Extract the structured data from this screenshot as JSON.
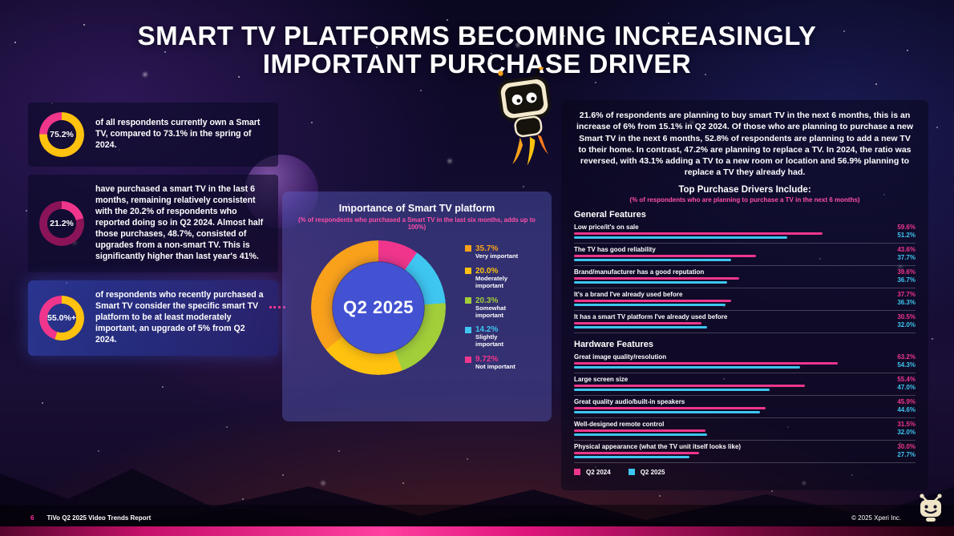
{
  "header": {
    "title_line1": "SMART TV PLATFORMS BECOMING INCREASINGLY",
    "title_line2": "IMPORTANT PURCHASE DRIVER"
  },
  "left_stats": [
    {
      "value": "75.2%",
      "ring_percent": 75.2,
      "ring_color": "#ffc20e",
      "ring_rest_color": "#f0368c",
      "text": "of all respondents currently own a Smart TV, compared to 73.1% in the spring of 2024."
    },
    {
      "value": "21.2%",
      "ring_percent": 21.2,
      "ring_color": "#f0368c",
      "ring_rest_color": "#8a1457",
      "text": "have purchased a smart TV in the last 6 months, remaining relatively consistent with the 20.2% of respondents who reported doing so in Q2 2024. Almost half those purchases, 48.7%, consisted of upgrades from a non-smart TV. This is significantly higher than last year's 41%."
    },
    {
      "value": "55.0%+",
      "ring_percent": 55.0,
      "ring_color": "#ffc20e",
      "ring_rest_color": "#f0368c",
      "text": "of respondents who recently purchased a Smart TV consider the specific smart TV platform to be at least moderately important, an upgrade of 5% from Q2 2024."
    }
  ],
  "right_panel": {
    "intro": "21.6% of respondents are planning to buy smart TV in the next 6 months, this is an increase of 6% from 15.1% in Q2 2024. Of those who are planning to purchase a new Smart TV in the next 6 months, 52.8% of respondents are planning to add a new TV to their home. In contrast, 47.2% are planning to replace a TV. In 2024, the ratio was reversed, with 43.1% adding a TV to a new room or location and 56.9% planning to replace a TV they already had.",
    "drivers_title": "Top Purchase Drivers Include:",
    "drivers_subtitle": "(% of respondents who are planning to purchase a TV in the next 6 months)"
  },
  "chart_data": [
    {
      "type": "pie",
      "title": "Importance of Smart TV platform",
      "subtitle": "(% of respondents who purchased a Smart TV in the last six months, adds up to 100%)",
      "center_label": "Q2 2025",
      "legend_position": "right",
      "segments": [
        {
          "label": "Very important",
          "value": 35.7,
          "display": "35.7%",
          "color": "#f9a11b"
        },
        {
          "label": "Moderately important",
          "value": 20.0,
          "display": "20.0%",
          "color": "#ffc20e"
        },
        {
          "label": "Somewhat important",
          "value": 20.3,
          "display": "20.3%",
          "color": "#a2ce39"
        },
        {
          "label": "Slightly important",
          "value": 14.2,
          "display": "14.2%",
          "color": "#3ec6f0"
        },
        {
          "label": "Not important",
          "value": 9.72,
          "display": "9.72%",
          "color": "#f0368c"
        }
      ]
    },
    {
      "type": "bar",
      "orientation": "horizontal",
      "axis_max": 70,
      "grid": false,
      "legend_position": "bottom-left",
      "series": [
        {
          "name": "Q2 2024",
          "color": "#f0368c"
        },
        {
          "name": "Q2 2025",
          "color": "#3ec6f0"
        }
      ],
      "groups": [
        {
          "name": "General Features",
          "items": [
            {
              "label": "Low price/it's on sale",
              "values": [
                59.6,
                51.2
              ]
            },
            {
              "label": "The TV has good reliability",
              "values": [
                43.6,
                37.7
              ]
            },
            {
              "label": "Brand/manufacturer has a good reputation",
              "values": [
                39.6,
                36.7
              ]
            },
            {
              "label": "It's a brand I've already used before",
              "values": [
                37.7,
                36.3
              ]
            },
            {
              "label": "It has a smart TV platform I've already used before",
              "values": [
                30.5,
                32.0
              ]
            }
          ]
        },
        {
          "name": "Hardware Features",
          "items": [
            {
              "label": "Great image quality/resolution",
              "values": [
                63.2,
                54.3
              ]
            },
            {
              "label": "Large screen size",
              "values": [
                55.4,
                47.0
              ]
            },
            {
              "label": "Great quality audio/built-in speakers",
              "values": [
                45.9,
                44.6
              ]
            },
            {
              "label": "Well-designed remote control",
              "values": [
                31.5,
                32.0
              ]
            },
            {
              "label": "Physical appearance (what the TV unit itself looks like)",
              "values": [
                30.0,
                27.7
              ]
            }
          ]
        }
      ]
    }
  ],
  "footer": {
    "page_number": "6",
    "report_name": "TiVo Q2 2025 Video Trends Report",
    "copyright": "© 2025 Xperi Inc."
  },
  "colors": {
    "pink": "#f0368c",
    "cyan": "#3ec6f0",
    "yellow": "#ffc20e",
    "orange": "#f9a11b",
    "green": "#a2ce39",
    "donut_center_blue": "#4352d2"
  }
}
